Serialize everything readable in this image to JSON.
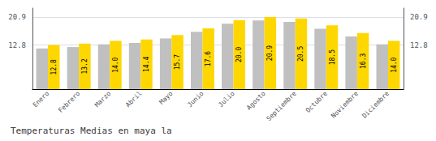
{
  "chart_data": {
    "type": "bar",
    "title": "Temperaturas Medias en maya la",
    "categories": [
      "Enero",
      "Febrero",
      "Marzo",
      "Abril",
      "Mayo",
      "Junio",
      "Julio",
      "Agosto",
      "Septiembre",
      "Octubre",
      "Noviembre",
      "Diciembre"
    ],
    "series": [
      {
        "color": "#C0C0C0",
        "values": [
          11.8,
          12.2,
          13.0,
          13.4,
          14.7,
          16.6,
          19.0,
          19.9,
          19.5,
          17.5,
          15.3,
          13.0
        ]
      },
      {
        "color": "#FFD700",
        "values": [
          12.8,
          13.2,
          14.0,
          14.4,
          15.7,
          17.6,
          20.0,
          20.9,
          20.5,
          18.5,
          16.3,
          14.0
        ],
        "data_labels": true,
        "value_labels": [
          "12.8",
          "13.2",
          "14.0",
          "14.4",
          "15.7",
          "17.6",
          "20.0",
          "20.9",
          "20.5",
          "18.5",
          "16.3",
          "14.0"
        ]
      }
    ],
    "ylim": [
      0,
      23.5
    ],
    "yticks": [
      12.8,
      20.9
    ],
    "y2lim": [
      0,
      23.5
    ],
    "y2ticks": [
      12.8,
      20.9
    ],
    "grid": true
  }
}
